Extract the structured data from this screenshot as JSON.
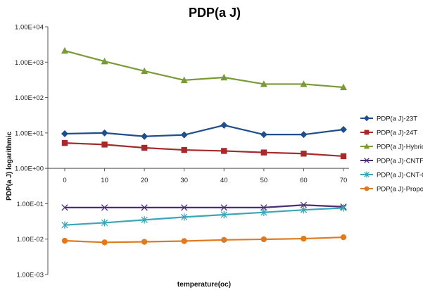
{
  "chart_data": {
    "type": "line",
    "title": "PDP(a J)",
    "xlabel": "temperature(oc)",
    "ylabel": "PDP(a J)  logarithmic",
    "y_scale": "log",
    "ylim": [
      0.001,
      10000
    ],
    "y_tick_labels": [
      "1.00E+04",
      "1.00E+03",
      "1.00E+02",
      "1.00E+01",
      "1.00E+00",
      "1.00E-01",
      "1.00E-02",
      "1.00E-03"
    ],
    "x_axis_crosses_y_at": 1,
    "categories": [
      "0",
      "10",
      "20",
      "30",
      "40",
      "50",
      "60",
      "70"
    ],
    "grid": false,
    "legend_position": "right",
    "series": [
      {
        "name": "PDP(a J)-23T",
        "color": "#1f4e8c",
        "marker": "diamond",
        "values": [
          9.5,
          10,
          8,
          8.8,
          16.5,
          9,
          9,
          12.5
        ]
      },
      {
        "name": "PDP(a J)-24T",
        "color": "#a52a2a",
        "marker": "square",
        "values": [
          5.2,
          4.7,
          3.8,
          3.3,
          3.1,
          2.8,
          2.6,
          2.2
        ]
      },
      {
        "name": "PDP(a J)-Hybrid",
        "color": "#7a9a3a",
        "marker": "triangle",
        "values": [
          2100,
          1050,
          560,
          310,
          370,
          240,
          240,
          195
        ]
      },
      {
        "name": "PDP(a J)-CNTFA",
        "color": "#4b2d73",
        "marker": "x",
        "values": [
          0.078,
          0.078,
          0.078,
          0.078,
          0.078,
          0.078,
          0.092,
          0.082
        ]
      },
      {
        "name": "PDP(a J)-CNT-CPL",
        "color": "#3aa6b8",
        "marker": "star",
        "values": [
          0.025,
          0.029,
          0.035,
          0.042,
          0.049,
          0.057,
          0.067,
          0.076
        ]
      },
      {
        "name": "PDP(a J)-Proposec",
        "color": "#e07a1f",
        "marker": "circle",
        "values": [
          0.009,
          0.0081,
          0.0084,
          0.0088,
          0.0095,
          0.0099,
          0.0103,
          0.0113
        ]
      }
    ]
  }
}
